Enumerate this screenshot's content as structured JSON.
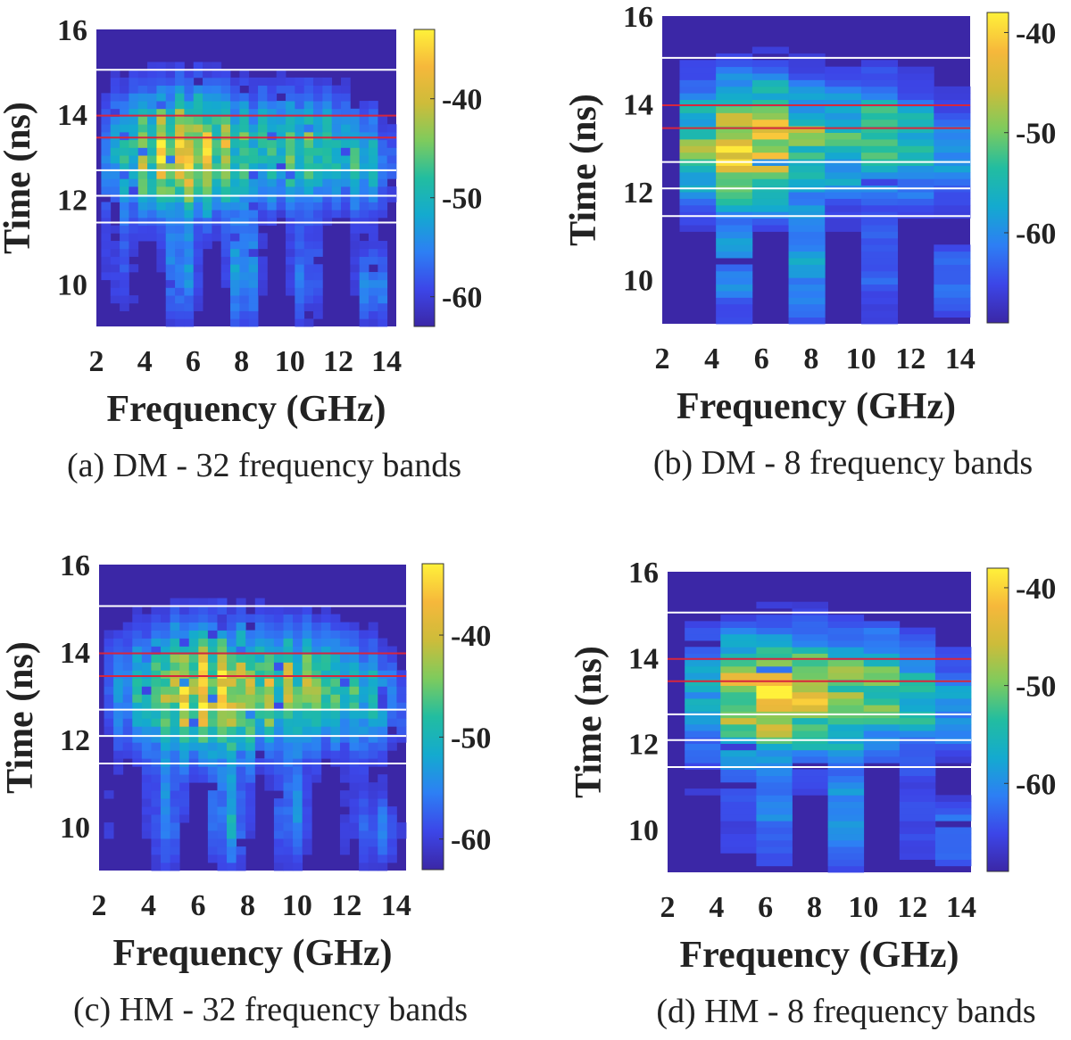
{
  "figure": {
    "colors": {
      "colormap": [
        "#3b27a6",
        "#3c46e8",
        "#2d7ff4",
        "#14aacf",
        "#22bda0",
        "#7ecb5d",
        "#cdbc3a",
        "#f6b83b",
        "#fff13a"
      ],
      "marker_white": "#ffffff",
      "marker_red": "#d7263d"
    }
  },
  "chart_data": [
    {
      "id": "a",
      "type": "heatmap",
      "caption": "(a) DM - 32 frequency bands",
      "xlabel": "Frequency (GHz)",
      "ylabel": "Time (ns)",
      "xlim": [
        2,
        14.4
      ],
      "ylim": [
        9,
        16
      ],
      "xticks": [
        "2",
        "4",
        "6",
        "8",
        "10",
        "12",
        "14"
      ],
      "yticks": [
        "10",
        "12",
        "14",
        "16"
      ],
      "bands": 32,
      "colorbar": {
        "range": [
          -63,
          -33
        ],
        "ticks": [
          "-40",
          "-50",
          "-60"
        ]
      },
      "white_lines_ns": [
        15.05,
        12.68,
        12.08,
        11.45
      ],
      "red_lines_ns": [
        13.97,
        13.45
      ],
      "peak_dB": -36
    },
    {
      "id": "b",
      "type": "heatmap",
      "caption": "(b) DM - 8 frequency bands",
      "xlabel": "Frequency (GHz)",
      "ylabel": "Time (ns)",
      "xlim": [
        2,
        14.4
      ],
      "ylim": [
        9,
        16
      ],
      "xticks": [
        "2",
        "4",
        "6",
        "8",
        "10",
        "12",
        "14"
      ],
      "yticks": [
        "10",
        "12",
        "14",
        "16"
      ],
      "bands": 8,
      "colorbar": {
        "range": [
          -69,
          -38
        ],
        "ticks": [
          "-40",
          "-50",
          "-60"
        ]
      },
      "white_lines_ns": [
        15.05,
        12.68,
        12.08,
        11.45
      ],
      "red_lines_ns": [
        13.97,
        13.45
      ],
      "peak_dB": -40
    },
    {
      "id": "c",
      "type": "heatmap",
      "caption": "(c) HM - 32 frequency bands",
      "xlabel": "Frequency (GHz)",
      "ylabel": "Time (ns)",
      "xlim": [
        2,
        14.4
      ],
      "ylim": [
        9,
        16
      ],
      "xticks": [
        "2",
        "4",
        "6",
        "8",
        "10",
        "12",
        "14"
      ],
      "yticks": [
        "10",
        "12",
        "14",
        "16"
      ],
      "bands": 32,
      "colorbar": {
        "range": [
          -63,
          -33
        ],
        "ticks": [
          "-40",
          "-50",
          "-60"
        ]
      },
      "white_lines_ns": [
        15.05,
        12.68,
        12.08,
        11.45
      ],
      "red_lines_ns": [
        13.97,
        13.45
      ],
      "peak_dB": -35
    },
    {
      "id": "d",
      "type": "heatmap",
      "caption": "(d) HM - 8 frequency bands",
      "xlabel": "Frequency (GHz)",
      "ylabel": "Time (ns)",
      "xlim": [
        2,
        14.4
      ],
      "ylim": [
        9,
        16
      ],
      "xticks": [
        "2",
        "4",
        "6",
        "8",
        "10",
        "12",
        "14"
      ],
      "yticks": [
        "10",
        "12",
        "14",
        "16"
      ],
      "bands": 8,
      "colorbar": {
        "range": [
          -69,
          -38
        ],
        "ticks": [
          "-40",
          "-50",
          "-60"
        ]
      },
      "white_lines_ns": [
        15.05,
        12.68,
        12.08,
        11.45
      ],
      "red_lines_ns": [
        13.97,
        13.45
      ],
      "peak_dB": -40
    }
  ]
}
